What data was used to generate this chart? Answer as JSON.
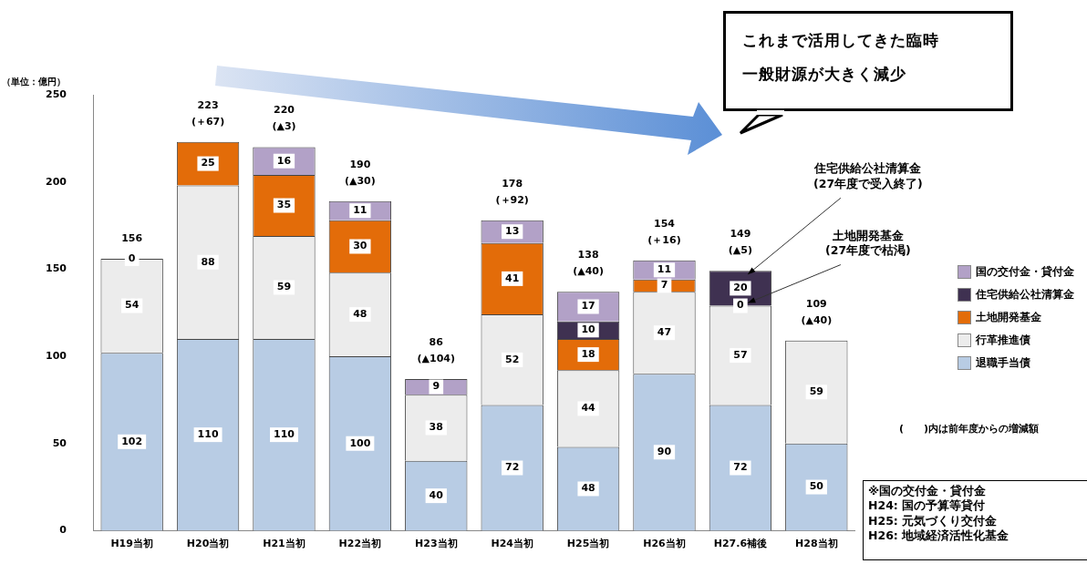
{
  "chart_data": {
    "type": "bar",
    "stacked": true,
    "ylabel": "（単位：億円）",
    "categories": [
      "H19当初",
      "H20当初",
      "H21当初",
      "H22当初",
      "H23当初",
      "H24当初",
      "H25当初",
      "H26当初",
      "H27.6補後",
      "H28当初"
    ],
    "series": [
      {
        "name": "退職手当債",
        "color": "#b8cce4",
        "values": [
          102,
          110,
          110,
          100,
          40,
          72,
          48,
          90,
          72,
          50
        ]
      },
      {
        "name": "行革推進債",
        "color": "#ececec",
        "values": [
          54,
          88,
          59,
          48,
          38,
          52,
          44,
          47,
          57,
          59
        ]
      },
      {
        "name": "土地開発基金",
        "color": "#e36c09",
        "values": [
          0,
          25,
          35,
          30,
          null,
          41,
          18,
          7,
          0,
          null
        ]
      },
      {
        "name": "住宅供給公社清算金",
        "color": "#3f3151",
        "values": [
          null,
          null,
          null,
          null,
          null,
          null,
          10,
          null,
          20,
          null
        ]
      },
      {
        "name": "国の交付金・貸付金",
        "color": "#b2a1c7",
        "values": [
          null,
          null,
          16,
          11,
          9,
          13,
          17,
          11,
          null,
          null
        ]
      }
    ],
    "ylim": [
      0,
      250
    ],
    "yticks": [
      0,
      50,
      100,
      150,
      200,
      250
    ],
    "grid": false,
    "legend": "right",
    "data_labels": true,
    "totals": [
      "156",
      "223\n(＋67)",
      "220\n(▲3)",
      "190\n(▲30)",
      "86\n(▲104)",
      "178\n(＋92)",
      "138\n(▲40)",
      "154\n(＋16)",
      "149\n(▲5)",
      "109\n(▲40)"
    ],
    "annotations": [
      {
        "text": "住宅供給公社清算金(27年度で受入終了)",
        "x": "H27.6補後",
        "y": 149
      },
      {
        "text": "土地開発基金(27年度で枯渇)",
        "x": "H27.6補後",
        "y": 129
      },
      "これまで活用してきた臨時一般財源が大きく減少",
      "(　　)内は前年度からの増減額",
      "※国の交付金・貸付金\nH24: 国の予算等貸付\nH25: 元気づくり交付金\nH26: 地域経済活性化基金"
    ]
  }
}
